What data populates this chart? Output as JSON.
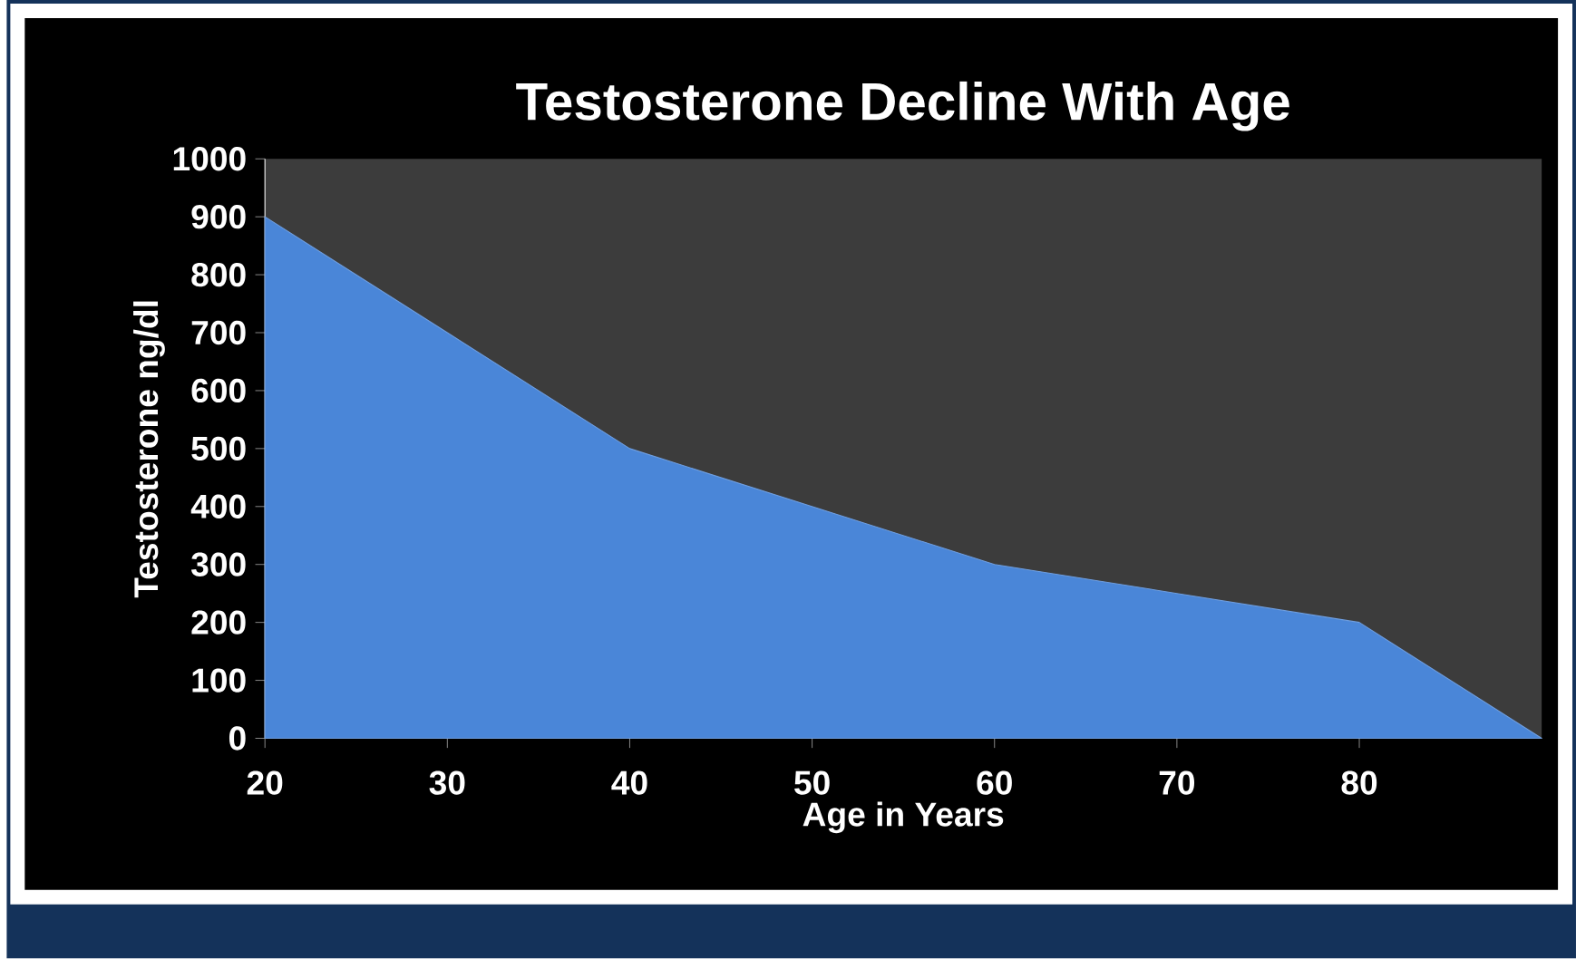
{
  "chart_data": {
    "type": "area",
    "title": "Testosterone  Decline With Age",
    "xlabel": "Age in Years",
    "ylabel": "Testosterone ng/dl",
    "x": [
      20,
      30,
      40,
      50,
      60,
      70,
      80,
      90
    ],
    "series": [
      {
        "color": "#4a86d8",
        "values": [
          900,
          700,
          500,
          400,
          300,
          250,
          200,
          0
        ]
      }
    ],
    "xlim": [
      20,
      90
    ],
    "xticks": [
      20,
      30,
      40,
      50,
      60,
      70,
      80
    ],
    "ylim": [
      0,
      1000
    ],
    "yticks": [
      0,
      100,
      200,
      300,
      400,
      500,
      600,
      700,
      800,
      900,
      1000
    ]
  }
}
